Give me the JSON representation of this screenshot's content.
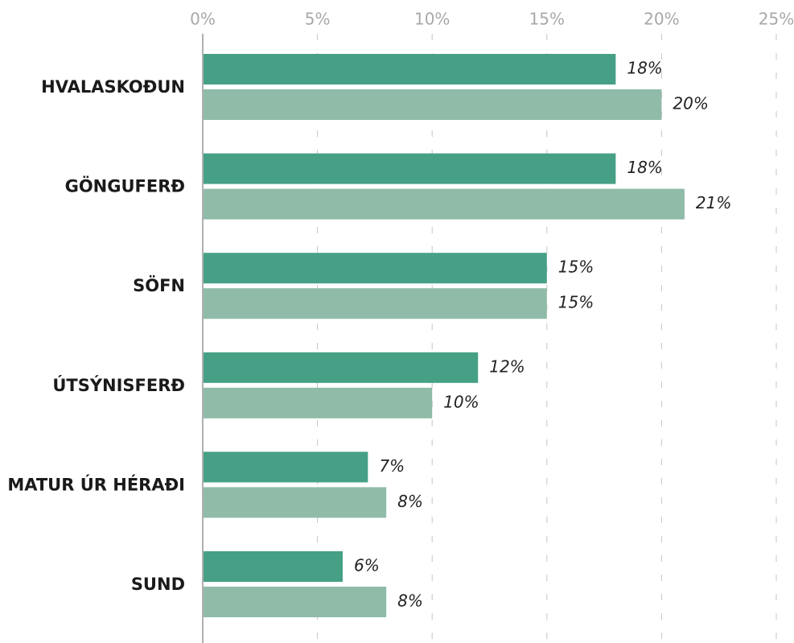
{
  "chart_data": {
    "type": "barh",
    "categories": [
      "HVALASKOÐUN",
      "GÖNGUFERÐ",
      "SÖFN",
      "ÚTSÝNISFERÐ",
      "MATUR ÚR HÉRAÐI",
      "SUND"
    ],
    "series": [
      {
        "color": "#46a085",
        "values": [
          18,
          18,
          15,
          12,
          7.2,
          6.1
        ],
        "value_labels": [
          "18%",
          "18%",
          "15%",
          "12%",
          "7%",
          "6%"
        ]
      },
      {
        "color": "#8fbba8",
        "values": [
          20,
          21,
          15,
          10,
          8,
          8
        ],
        "value_labels": [
          "20%",
          "21%",
          "15%",
          "10%",
          "8%",
          "8%"
        ]
      }
    ],
    "xlim": [
      0,
      25
    ],
    "xticks": [
      {
        "value": 0,
        "label": "0%"
      },
      {
        "value": 5,
        "label": "5%"
      },
      {
        "value": 10,
        "label": "10%"
      },
      {
        "value": 15,
        "label": "15%"
      },
      {
        "value": 20,
        "label": "20%"
      },
      {
        "value": 25,
        "label": "25%"
      }
    ],
    "grid": true
  }
}
